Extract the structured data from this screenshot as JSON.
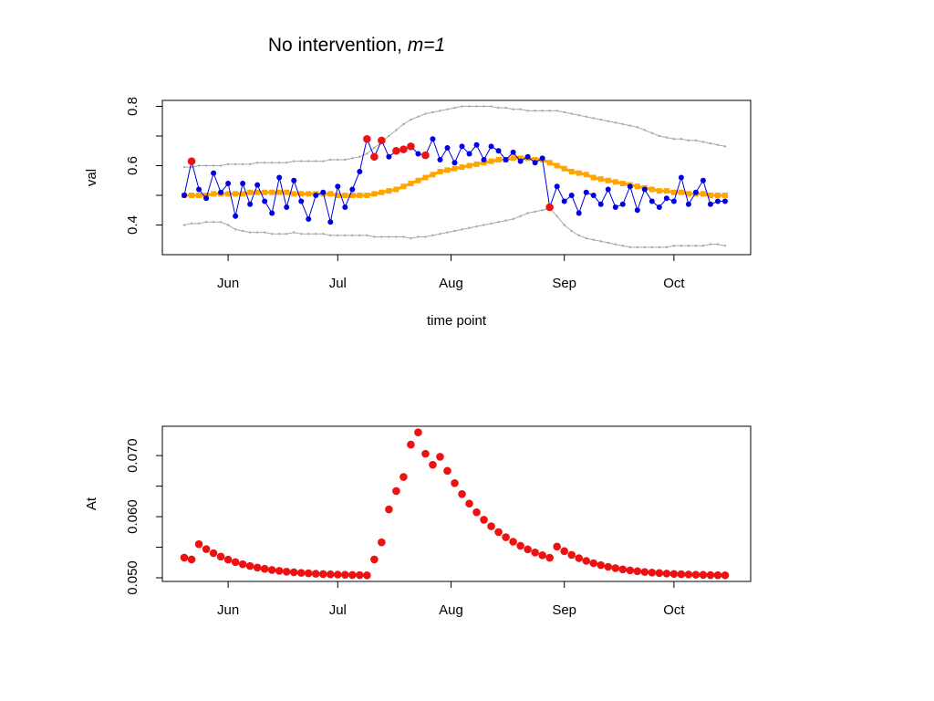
{
  "chart_data": [
    {
      "type": "line",
      "title": {
        "text": "No intervention, ",
        "math": "m=1"
      },
      "xlabel": "time point",
      "ylabel": "val",
      "x": [
        0,
        2,
        4,
        6,
        8,
        10,
        12,
        14,
        16,
        18,
        20,
        22,
        24,
        26,
        28,
        30,
        32,
        34,
        36,
        38,
        40,
        42,
        44,
        46,
        48,
        50,
        52,
        54,
        56,
        58,
        60,
        62,
        64,
        66,
        68,
        70,
        72,
        74,
        76,
        78,
        80,
        82,
        84,
        86,
        88,
        90,
        92,
        94,
        96,
        98,
        100,
        102,
        104,
        106,
        108,
        110,
        112,
        114,
        116,
        118,
        120,
        122,
        124,
        126,
        128,
        130,
        132,
        134,
        136,
        138,
        140,
        142,
        144,
        146,
        148
      ],
      "xlim": [
        -6,
        155
      ],
      "xticks": [
        {
          "value": 12,
          "label": "Jun"
        },
        {
          "value": 42,
          "label": "Jul"
        },
        {
          "value": 73,
          "label": "Aug"
        },
        {
          "value": 104,
          "label": "Sep"
        },
        {
          "value": 134,
          "label": "Oct"
        }
      ],
      "ylim": [
        0.3,
        0.82
      ],
      "yticks": [
        0.4,
        0.6,
        0.8
      ],
      "yticks_minor": [
        0.5,
        0.7
      ],
      "series": [
        {
          "color": "#aaaaaa",
          "style": "line-dots",
          "values": [
            0.595,
            0.595,
            0.6,
            0.6,
            0.6,
            0.6,
            0.605,
            0.605,
            0.605,
            0.605,
            0.61,
            0.61,
            0.61,
            0.61,
            0.61,
            0.615,
            0.615,
            0.615,
            0.615,
            0.615,
            0.62,
            0.62,
            0.62,
            0.625,
            0.63,
            0.64,
            0.66,
            0.68,
            0.7,
            0.72,
            0.74,
            0.755,
            0.765,
            0.775,
            0.78,
            0.785,
            0.79,
            0.795,
            0.8,
            0.8,
            0.8,
            0.8,
            0.8,
            0.795,
            0.795,
            0.79,
            0.79,
            0.785,
            0.785,
            0.785,
            0.785,
            0.785,
            0.78,
            0.775,
            0.77,
            0.765,
            0.76,
            0.755,
            0.75,
            0.745,
            0.74,
            0.735,
            0.73,
            0.72,
            0.71,
            0.7,
            0.695,
            0.69,
            0.69,
            0.685,
            0.685,
            0.68,
            0.675,
            0.67,
            0.665
          ]
        },
        {
          "color": "#aaaaaa",
          "style": "line-dots",
          "values": [
            0.4,
            0.405,
            0.405,
            0.41,
            0.41,
            0.41,
            0.4,
            0.385,
            0.38,
            0.375,
            0.375,
            0.375,
            0.37,
            0.37,
            0.37,
            0.375,
            0.37,
            0.37,
            0.37,
            0.37,
            0.365,
            0.365,
            0.365,
            0.365,
            0.365,
            0.365,
            0.36,
            0.36,
            0.36,
            0.36,
            0.36,
            0.355,
            0.36,
            0.36,
            0.365,
            0.37,
            0.375,
            0.38,
            0.385,
            0.39,
            0.395,
            0.4,
            0.405,
            0.41,
            0.415,
            0.42,
            0.43,
            0.44,
            0.445,
            0.45,
            0.455,
            0.43,
            0.4,
            0.38,
            0.365,
            0.355,
            0.35,
            0.345,
            0.34,
            0.335,
            0.33,
            0.325,
            0.325,
            0.325,
            0.325,
            0.325,
            0.325,
            0.33,
            0.33,
            0.33,
            0.33,
            0.33,
            0.335,
            0.335,
            0.33
          ]
        },
        {
          "color": "#ffa500",
          "style": "line-squares",
          "values": [
            0.5,
            0.5,
            0.5,
            0.5,
            0.505,
            0.505,
            0.505,
            0.505,
            0.505,
            0.51,
            0.51,
            0.51,
            0.51,
            0.51,
            0.51,
            0.505,
            0.505,
            0.505,
            0.505,
            0.505,
            0.505,
            0.5,
            0.5,
            0.5,
            0.5,
            0.5,
            0.505,
            0.51,
            0.515,
            0.52,
            0.53,
            0.54,
            0.55,
            0.56,
            0.57,
            0.58,
            0.585,
            0.59,
            0.595,
            0.6,
            0.605,
            0.61,
            0.615,
            0.62,
            0.62,
            0.625,
            0.625,
            0.625,
            0.62,
            0.62,
            0.61,
            0.6,
            0.59,
            0.58,
            0.575,
            0.57,
            0.56,
            0.555,
            0.55,
            0.545,
            0.54,
            0.535,
            0.53,
            0.525,
            0.52,
            0.515,
            0.515,
            0.51,
            0.51,
            0.505,
            0.505,
            0.505,
            0.5,
            0.5,
            0.5
          ]
        },
        {
          "color": "#0000dd",
          "style": "line-points",
          "values": [
            0.5,
            0.615,
            0.52,
            0.49,
            0.575,
            0.51,
            0.54,
            0.43,
            0.54,
            0.47,
            0.535,
            0.48,
            0.44,
            0.56,
            0.46,
            0.55,
            0.48,
            0.42,
            0.5,
            0.51,
            0.41,
            0.53,
            0.46,
            0.52,
            0.58,
            0.69,
            0.63,
            0.685,
            0.63,
            0.65,
            0.655,
            0.665,
            0.64,
            0.635,
            0.69,
            0.62,
            0.66,
            0.61,
            0.665,
            0.64,
            0.67,
            0.62,
            0.665,
            0.65,
            0.62,
            0.645,
            0.615,
            0.63,
            0.61,
            0.625,
            0.46,
            0.53,
            0.48,
            0.5,
            0.44,
            0.51,
            0.5,
            0.47,
            0.52,
            0.46,
            0.47,
            0.53,
            0.45,
            0.52,
            0.48,
            0.46,
            0.49,
            0.48,
            0.56,
            0.47,
            0.51,
            0.55,
            0.47,
            0.48,
            0.48
          ]
        },
        {
          "color": "#ee1111",
          "style": "points",
          "values": [
            null,
            0.615,
            null,
            null,
            null,
            null,
            null,
            null,
            null,
            null,
            null,
            null,
            null,
            null,
            null,
            null,
            null,
            null,
            null,
            null,
            null,
            null,
            null,
            null,
            null,
            0.69,
            0.63,
            0.685,
            null,
            0.65,
            0.655,
            0.665,
            null,
            0.635,
            null,
            null,
            null,
            null,
            null,
            null,
            null,
            null,
            null,
            null,
            null,
            null,
            null,
            null,
            null,
            null,
            0.46,
            null,
            null,
            null,
            null,
            null,
            null,
            null,
            null,
            null,
            null,
            null,
            null,
            null,
            null,
            null,
            null,
            null,
            null,
            null,
            null,
            null,
            null,
            null,
            null
          ]
        }
      ]
    },
    {
      "type": "scatter",
      "ylabel": "At",
      "x": [
        0,
        2,
        4,
        6,
        8,
        10,
        12,
        14,
        16,
        18,
        20,
        22,
        24,
        26,
        28,
        30,
        32,
        34,
        36,
        38,
        40,
        42,
        44,
        46,
        48,
        50,
        52,
        54,
        56,
        58,
        60,
        62,
        64,
        66,
        68,
        70,
        72,
        74,
        76,
        78,
        80,
        82,
        84,
        86,
        88,
        90,
        92,
        94,
        96,
        98,
        100,
        102,
        104,
        106,
        108,
        110,
        112,
        114,
        116,
        118,
        120,
        122,
        124,
        126,
        128,
        130,
        132,
        134,
        136,
        138,
        140,
        142,
        144,
        146,
        148
      ],
      "xlim": [
        -6,
        155
      ],
      "xticks": [
        {
          "value": 12,
          "label": "Jun"
        },
        {
          "value": 42,
          "label": "Jul"
        },
        {
          "value": 73,
          "label": "Aug"
        },
        {
          "value": 104,
          "label": "Sep"
        },
        {
          "value": 134,
          "label": "Oct"
        }
      ],
      "ylim": [
        0.0494,
        0.0748
      ],
      "yticks": [
        {
          "value": 0.05,
          "label": "0.050"
        },
        {
          "value": 0.06,
          "label": "0.060"
        },
        {
          "value": 0.07,
          "label": "0.070"
        }
      ],
      "yticks_minor": [
        0.055,
        0.065
      ],
      "series": [
        {
          "color": "#ee1111",
          "style": "points",
          "values": [
            0.0533,
            0.053,
            0.0555,
            0.0547,
            0.05403,
            0.05346,
            0.05297,
            0.05256,
            0.05221,
            0.05192,
            0.05167,
            0.05146,
            0.05128,
            0.05113,
            0.051,
            0.0509,
            0.0508,
            0.05073,
            0.05066,
            0.05061,
            0.05056,
            0.05052,
            0.05049,
            0.05046,
            0.05044,
            0.0504,
            0.053,
            0.0558,
            0.0612,
            0.0642,
            0.0665,
            0.0718,
            0.0738,
            0.0703,
            0.0685,
            0.0698,
            0.0675,
            0.06549,
            0.0637,
            0.06214,
            0.06073,
            0.0595,
            0.05843,
            0.05748,
            0.05664,
            0.0559,
            0.05523,
            0.05465,
            0.05414,
            0.05369,
            0.05328,
            0.0551,
            0.05436,
            0.05374,
            0.05321,
            0.05276,
            0.05239,
            0.05207,
            0.05179,
            0.05157,
            0.05137,
            0.05121,
            0.05107,
            0.05095,
            0.05085,
            0.05077,
            0.05069,
            0.05063,
            0.05058,
            0.05054,
            0.0505,
            0.05047,
            0.05044,
            0.05042,
            0.05041
          ]
        }
      ]
    }
  ]
}
